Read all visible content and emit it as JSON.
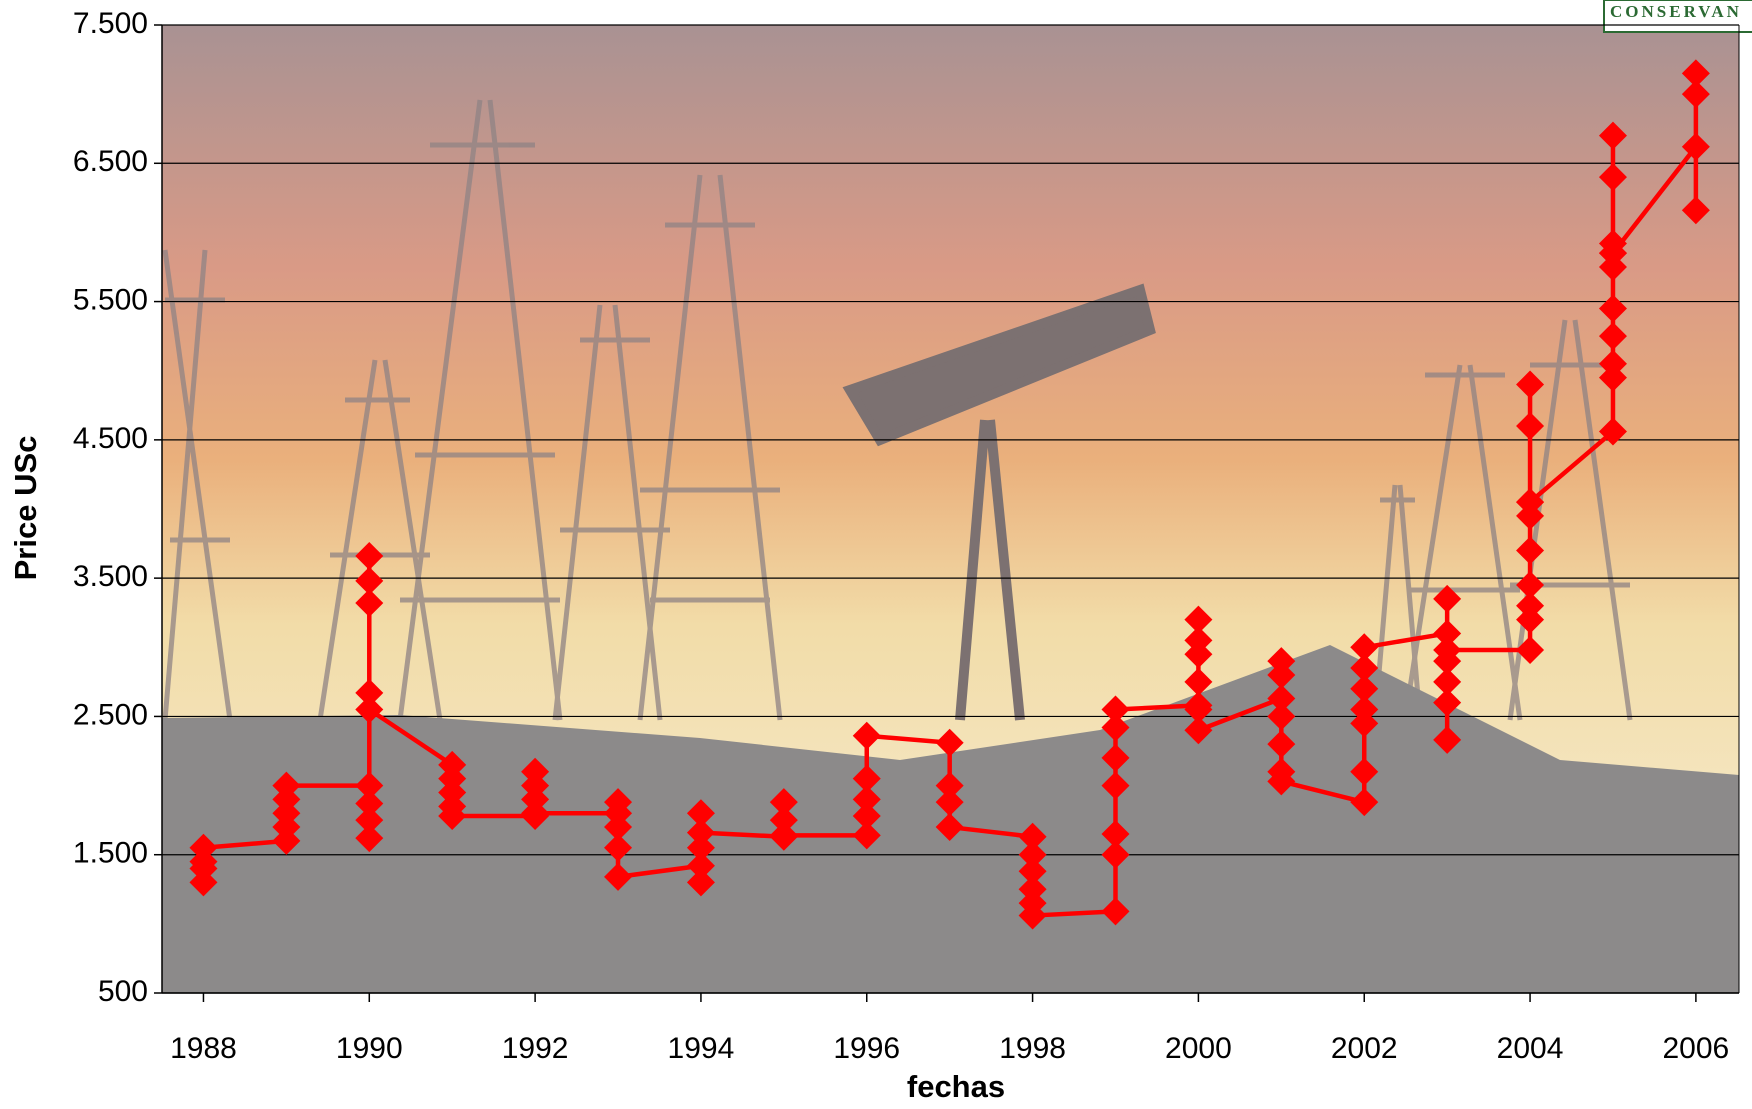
{
  "chart_data": {
    "type": "line",
    "x_label": "fechas",
    "y_label": "Price USc",
    "annotations": [
      "CONSERVAN"
    ],
    "x": [
      1988,
      1988,
      1988,
      1988,
      1989,
      1989,
      1989,
      1989,
      1989,
      1990,
      1990,
      1990,
      1990,
      1990,
      1990,
      1990,
      1990,
      1990,
      1991,
      1991,
      1991,
      1991,
      1991,
      1992,
      1992,
      1992,
      1992,
      1992,
      1993,
      1993,
      1993,
      1993,
      1993,
      1994,
      1994,
      1994,
      1994,
      1994,
      1995,
      1995,
      1995,
      1995,
      1996,
      1996,
      1996,
      1996,
      1996,
      1997,
      1997,
      1997,
      1997,
      1998,
      1998,
      1998,
      1998,
      1998,
      1998,
      1999,
      1999,
      1999,
      1999,
      1999,
      1999,
      1999,
      2000,
      2000,
      2000,
      2000,
      2000,
      2000,
      2000,
      2001,
      2001,
      2001,
      2001,
      2001,
      2001,
      2001,
      2002,
      2002,
      2002,
      2002,
      2002,
      2002,
      2002,
      2003,
      2003,
      2003,
      2003,
      2003,
      2003,
      2003,
      2004,
      2004,
      2004,
      2004,
      2004,
      2004,
      2004,
      2004,
      2004,
      2004,
      2005,
      2005,
      2005,
      2005,
      2005,
      2005,
      2005,
      2005,
      2005,
      2005,
      2005,
      2006,
      2006,
      2006,
      2006
    ],
    "series": [
      {
        "name": "Price USc",
        "color": "#ff0000",
        "values": [
          1300,
          1400,
          1450,
          1550,
          1600,
          1700,
          1800,
          1900,
          2000,
          2000,
          1870,
          1750,
          1620,
          3660,
          3480,
          3320,
          2670,
          2550,
          2150,
          2050,
          1950,
          1850,
          1780,
          1780,
          2100,
          2000,
          1900,
          1800,
          1800,
          1880,
          1700,
          1550,
          1340,
          1420,
          1300,
          1550,
          1800,
          1660,
          1630,
          1880,
          1750,
          1640,
          1640,
          1780,
          1900,
          2050,
          2360,
          2310,
          2000,
          1880,
          1700,
          1630,
          1500,
          1380,
          1250,
          1150,
          1060,
          1090,
          1500,
          1650,
          2000,
          2200,
          2420,
          2550,
          2580,
          2950,
          3050,
          3200,
          2750,
          2550,
          2400,
          2630,
          2900,
          2800,
          2500,
          2300,
          2100,
          2030,
          1880,
          2100,
          2450,
          2550,
          2700,
          2850,
          3000,
          3100,
          3350,
          2900,
          2750,
          2600,
          2330,
          2980,
          2980,
          3200,
          3300,
          3450,
          3700,
          3950,
          4050,
          4600,
          4900,
          4050,
          4560,
          4950,
          5050,
          5250,
          5450,
          5750,
          5850,
          5920,
          6400,
          6700,
          5850,
          6620,
          7150,
          7000,
          6160
        ]
      }
    ],
    "xlim": [
      1987.5,
      2006.52
    ],
    "xticks": [
      1988,
      1990,
      1992,
      1994,
      1996,
      1998,
      2000,
      2002,
      2004,
      2006
    ],
    "ylim": [
      500,
      7500
    ],
    "yticks": [
      500,
      {
        "value": 1500,
        "label": "1.500"
      },
      {
        "value": 2500,
        "label": "2.500"
      },
      {
        "value": 3500,
        "label": "3.500"
      },
      {
        "value": 4500,
        "label": "4.500"
      },
      {
        "value": 5500,
        "label": "5.500"
      },
      {
        "value": 6500,
        "label": "6.500"
      },
      {
        "value": 7500,
        "label": "7.500"
      }
    ],
    "grid": true
  }
}
